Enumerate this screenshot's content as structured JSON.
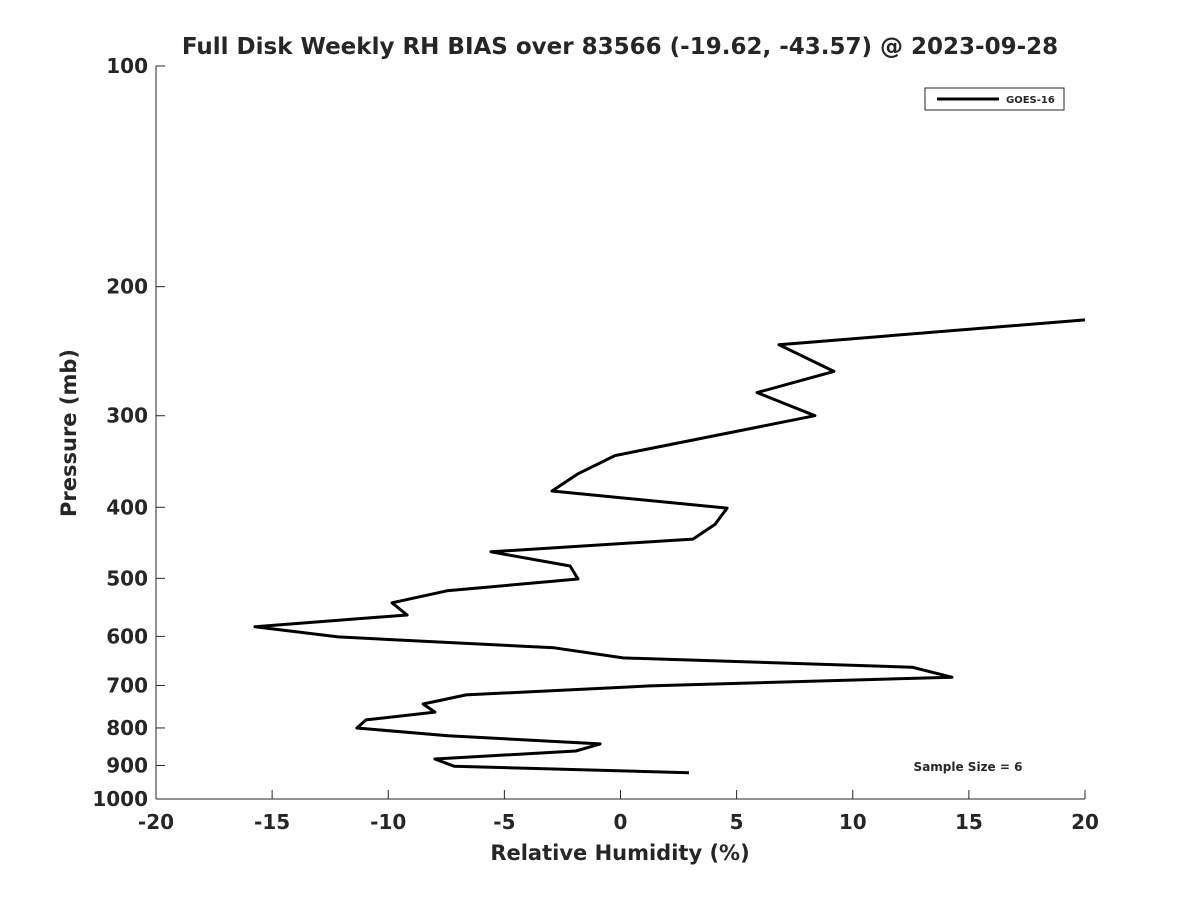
{
  "chart_data": {
    "type": "line",
    "title": "Full Disk Weekly RH BIAS over 83566 (-19.62, -43.57) @ 2023-09-28",
    "xlabel": "Relative Humidity (%)",
    "ylabel": "Pressure (mb)",
    "xlim": [
      -20,
      20
    ],
    "ylim": [
      100,
      1000
    ],
    "yscale": "log",
    "y_reversed": true,
    "grid": false,
    "xticks": [
      -20,
      -15,
      -10,
      -5,
      0,
      5,
      10,
      15,
      20
    ],
    "yticks": [
      100,
      200,
      300,
      400,
      500,
      600,
      700,
      800,
      900,
      1000
    ],
    "legend": {
      "placement": "top-right",
      "entries": [
        "GOES-16"
      ]
    },
    "annotation": "Sample Size = 6",
    "series": [
      {
        "name": "GOES-16",
        "color": "#000000",
        "x": [
          20,
          6.82,
          9.19,
          5.88,
          8.37,
          -0.24,
          -1.83,
          -2.95,
          4.59,
          4.07,
          3.12,
          -5.58,
          -2.17,
          -1.83,
          -7.47,
          -9.84,
          -9.19,
          -15.74,
          -12.16,
          -2.86,
          0.11,
          12.55,
          14.27,
          1.27,
          -6.65,
          -8.5,
          -7.99,
          -10.96,
          -11.35,
          -7.43,
          -0.88,
          -1.92,
          -7.99,
          -7.17,
          2.95
        ],
        "y": [
          222,
          240,
          261,
          279,
          300,
          340,
          360,
          380,
          401,
          422,
          442,
          460,
          481,
          501,
          520,
          540,
          561,
          582,
          601,
          622,
          642,
          661,
          682,
          701,
          721,
          742,
          761,
          780,
          800,
          820,
          841,
          860,
          882,
          902,
          921
        ]
      }
    ]
  }
}
